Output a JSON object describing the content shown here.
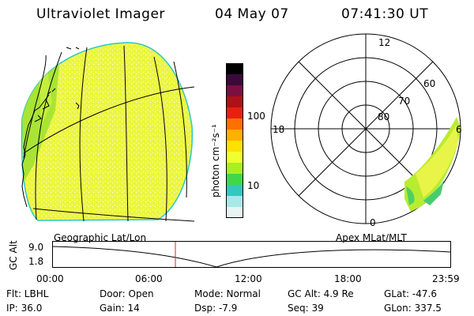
{
  "header": {
    "title": "Ultraviolet Imager",
    "date": "04 May 07",
    "time": "07:41:30 UT"
  },
  "colorbar": {
    "unit_label": "photon cm⁻²s⁻¹",
    "ticks": [
      "100",
      "10"
    ],
    "colors": [
      "#000000",
      "#3a0a3a",
      "#7a1040",
      "#b01018",
      "#e82010",
      "#ff7000",
      "#ffb000",
      "#ffe000",
      "#f0ff30",
      "#a8f020",
      "#40d848",
      "#30c8c0",
      "#a8e8e8",
      "#e8f4f4"
    ]
  },
  "polar": {
    "lat_labels": [
      "80",
      "70",
      "60"
    ],
    "mlt_labels": {
      "top": "12",
      "left": "18",
      "right": "6",
      "bottom": "0"
    }
  },
  "orbit": {
    "left_label": "Geographic Lat/Lon",
    "right_label": "Apex MLat/MLT",
    "y_axis_label": "GC Alt",
    "y_ticks": [
      "9.0",
      "1.8"
    ],
    "x_ticks": [
      "00:00",
      "06:00",
      "12:00",
      "18:00",
      "23:59"
    ],
    "marker_color": "#e02020"
  },
  "info": {
    "flt": "Flt: LBHL",
    "ip": "IP: 36.0",
    "door": "Door: Open",
    "gain": "Gain: 14",
    "mode": "Mode: Normal",
    "dsp": "Dsp:    -7.9",
    "gcalt": "GC Alt: 4.9 Re",
    "seq": "Seq: 39",
    "glat": "GLat: -47.6",
    "glon": "GLon: 337.5"
  }
}
